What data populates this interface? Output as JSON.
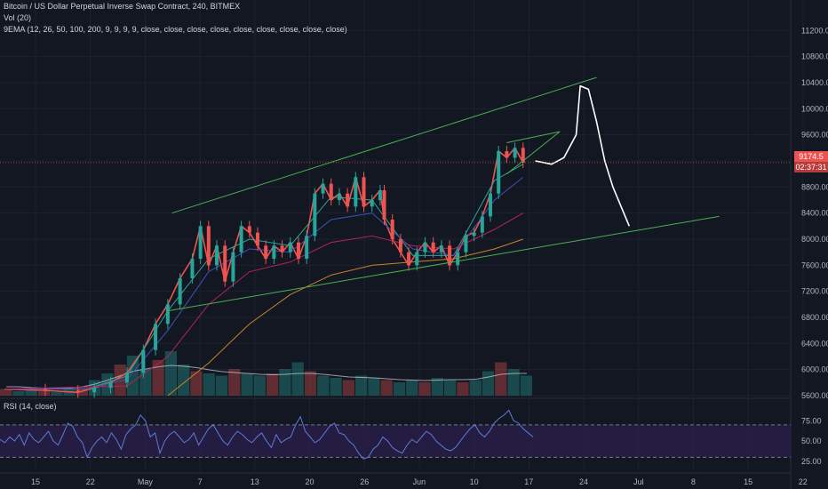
{
  "legend": {
    "title": "Bitcoin / US Dollar Perpetual Inverse Swap Contract, 240, BITMEX",
    "vol": "Vol (20)",
    "ema": "9EMA (12, 26, 50, 100, 200, 9, 9, 9, 9, close, close, close, close, close, close, close, close, close)",
    "rsi": "RSI (14, close)"
  },
  "price_tags": {
    "last": "9174.5",
    "countdown": "02:37:31"
  },
  "colors": {
    "background": "#131722",
    "up": "#26a69a",
    "down": "#ef5350",
    "trendline": "#4caf50",
    "rsi": "#5c7bd9",
    "rsi_band": "#2a1f4a",
    "grid": "#1e2230"
  },
  "chart_data": [
    {
      "type": "line",
      "panel": "price",
      "ylim": [
        5600,
        11600
      ],
      "y_ticks": [
        5600,
        6000,
        6400,
        6800,
        7200,
        7600,
        8000,
        8400,
        8800,
        9200,
        9600,
        10000,
        10400,
        10800,
        11200
      ],
      "x_ticks": [
        "15",
        "22",
        "May",
        "7",
        "13",
        "20",
        "26",
        "Jun",
        "10",
        "17",
        "24",
        "Jul",
        "8",
        "15",
        "22"
      ],
      "series": [
        {
          "role": "price",
          "points": [
            [
              0,
              5700
            ],
            [
              10,
              5680
            ],
            [
              18,
              5650
            ],
            [
              22,
              5720
            ],
            [
              26,
              5800
            ],
            [
              30,
              5950
            ],
            [
              34,
              6300
            ],
            [
              37,
              6700
            ],
            [
              40,
              7000
            ],
            [
              43,
              7400
            ],
            [
              46,
              7700
            ],
            [
              48,
              8200
            ],
            [
              50,
              7600
            ],
            [
              52,
              7900
            ],
            [
              54,
              7350
            ],
            [
              56,
              7800
            ],
            [
              58,
              8200
            ],
            [
              60,
              8100
            ],
            [
              62,
              7900
            ],
            [
              64,
              7700
            ],
            [
              66,
              7900
            ],
            [
              68,
              7800
            ],
            [
              70,
              7950
            ],
            [
              72,
              7700
            ],
            [
              74,
              8050
            ],
            [
              76,
              8700
            ],
            [
              78,
              8850
            ],
            [
              80,
              8600
            ],
            [
              82,
              8700
            ],
            [
              84,
              8500
            ],
            [
              86,
              8950
            ],
            [
              88,
              8500
            ],
            [
              90,
              8600
            ],
            [
              92,
              8750
            ],
            [
              93,
              8300
            ],
            [
              95,
              8000
            ],
            [
              97,
              7800
            ],
            [
              99,
              7600
            ],
            [
              101,
              7800
            ],
            [
              103,
              7950
            ],
            [
              105,
              7800
            ],
            [
              107,
              7900
            ],
            [
              109,
              7600
            ],
            [
              111,
              7800
            ],
            [
              113,
              8050
            ],
            [
              115,
              8100
            ],
            [
              117,
              8350
            ],
            [
              119,
              8700
            ],
            [
              121,
              9350
            ],
            [
              123,
              9250
            ],
            [
              125,
              9400
            ],
            [
              127,
              9174
            ]
          ]
        },
        {
          "role": "ema-fast",
          "points": [
            [
              0,
              5700
            ],
            [
              20,
              5700
            ],
            [
              30,
              5900
            ],
            [
              40,
              6900
            ],
            [
              50,
              7700
            ],
            [
              60,
              8000
            ],
            [
              70,
              7900
            ],
            [
              80,
              8650
            ],
            [
              90,
              8600
            ],
            [
              100,
              7750
            ],
            [
              110,
              7750
            ],
            [
              120,
              8900
            ],
            [
              127,
              9150
            ]
          ]
        },
        {
          "role": "ema-mid",
          "points": [
            [
              0,
              5700
            ],
            [
              20,
              5700
            ],
            [
              30,
              5850
            ],
            [
              40,
              6600
            ],
            [
              50,
              7500
            ],
            [
              60,
              7850
            ],
            [
              70,
              7800
            ],
            [
              80,
              8300
            ],
            [
              90,
              8400
            ],
            [
              100,
              7850
            ],
            [
              110,
              7750
            ],
            [
              120,
              8600
            ],
            [
              127,
              8950
            ]
          ]
        },
        {
          "role": "ema-100",
          "points": [
            [
              0,
              5700
            ],
            [
              30,
              5750
            ],
            [
              40,
              6200
            ],
            [
              50,
              7000
            ],
            [
              60,
              7500
            ],
            [
              70,
              7650
            ],
            [
              80,
              7950
            ],
            [
              90,
              8050
            ],
            [
              100,
              7900
            ],
            [
              110,
              7850
            ],
            [
              120,
              8150
            ],
            [
              127,
              8400
            ]
          ]
        },
        {
          "role": "ema-200",
          "points": [
            [
              40,
              5600
            ],
            [
              50,
              6100
            ],
            [
              60,
              6700
            ],
            [
              70,
              7150
            ],
            [
              80,
              7450
            ],
            [
              90,
              7600
            ],
            [
              100,
              7650
            ],
            [
              110,
              7700
            ],
            [
              120,
              7850
            ],
            [
              127,
              8000
            ]
          ]
        }
      ],
      "trendlines": [
        {
          "from": [
            41,
            8400
          ],
          "to": [
            145,
            10480
          ]
        },
        {
          "from": [
            40,
            6900
          ],
          "to": [
            175,
            8350
          ]
        },
        {
          "from": [
            123,
            9480
          ],
          "to": [
            136,
            9650
          ]
        },
        {
          "from": [
            123,
            9000
          ],
          "to": [
            136,
            9650
          ]
        }
      ],
      "projection": [
        [
          130,
          9200
        ],
        [
          134,
          9150
        ],
        [
          137,
          9250
        ],
        [
          140,
          9600
        ],
        [
          141,
          10350
        ],
        [
          143,
          10300
        ],
        [
          145,
          9800
        ],
        [
          147,
          9200
        ],
        [
          149,
          8800
        ],
        [
          151,
          8500
        ],
        [
          153,
          8200
        ]
      ]
    },
    {
      "type": "area",
      "panel": "volume",
      "note_values": "relative volume 0-1",
      "values": [
        0.15,
        0.1,
        0.12,
        0.1,
        0.08,
        0.14,
        0.2,
        0.35,
        0.5,
        0.7,
        0.9,
        0.6,
        0.8,
        1.0,
        0.7,
        0.55,
        0.5,
        0.45,
        0.6,
        0.5,
        0.45,
        0.5,
        0.6,
        0.75,
        0.55,
        0.45,
        0.4,
        0.35,
        0.45,
        0.4,
        0.35,
        0.3,
        0.35,
        0.3,
        0.4,
        0.35,
        0.3,
        0.35,
        0.55,
        0.75,
        0.6,
        0.45
      ],
      "ma20": [
        0.2,
        0.2,
        0.18,
        0.17,
        0.16,
        0.17,
        0.2,
        0.26,
        0.35,
        0.45,
        0.55,
        0.6,
        0.65,
        0.68,
        0.66,
        0.63,
        0.58,
        0.54,
        0.52,
        0.5,
        0.48,
        0.47,
        0.48,
        0.5,
        0.5,
        0.48,
        0.45,
        0.42,
        0.41,
        0.4,
        0.38,
        0.36,
        0.35,
        0.34,
        0.35,
        0.36,
        0.36,
        0.37,
        0.42,
        0.48,
        0.5,
        0.5
      ]
    },
    {
      "type": "line",
      "panel": "rsi",
      "ylim": [
        15,
        95
      ],
      "y_ticks": [
        25,
        50,
        75
      ],
      "bands": [
        30,
        70
      ],
      "values": [
        52,
        48,
        55,
        50,
        58,
        45,
        60,
        52,
        48,
        55,
        62,
        50,
        45,
        58,
        72,
        68,
        55,
        48,
        30,
        42,
        50,
        55,
        48,
        60,
        52,
        40,
        58,
        65,
        70,
        82,
        75,
        55,
        60,
        35,
        50,
        58,
        62,
        55,
        48,
        52,
        60,
        45,
        55,
        65,
        70,
        60,
        50,
        45,
        55,
        62,
        58,
        52,
        48,
        55,
        60,
        50,
        42,
        58,
        48,
        52,
        55,
        70,
        80,
        62,
        55,
        48,
        52,
        60,
        68,
        72,
        60,
        58,
        50,
        45,
        35,
        28,
        30,
        40,
        45,
        55,
        50,
        42,
        38,
        35,
        45,
        52,
        48,
        55,
        62,
        58,
        50,
        45,
        40,
        38,
        42,
        50,
        58,
        65,
        70,
        60,
        55,
        62,
        72,
        78,
        82,
        88,
        75,
        72,
        65,
        60,
        55
      ]
    }
  ]
}
